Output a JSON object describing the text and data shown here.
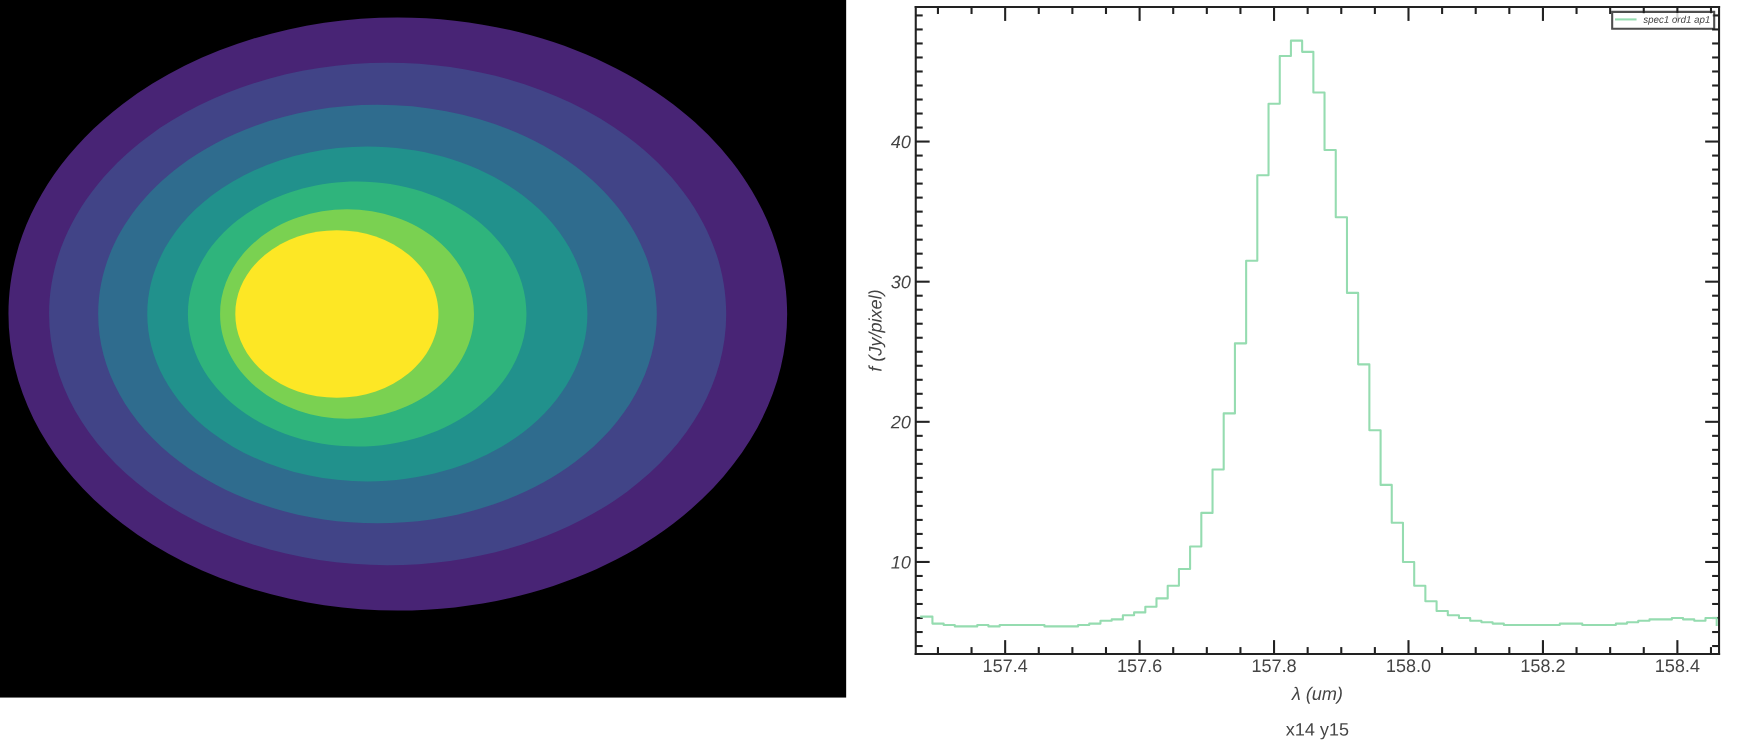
{
  "chart_data": {
    "type": "step",
    "xlabel": "λ (um)",
    "ylabel": "f (Jy/pixel)",
    "annotations": [
      "x14 y15"
    ],
    "xlim": [
      157.267,
      158.462
    ],
    "ylim": [
      3.43,
      49.6
    ],
    "xticks": [
      {
        "value": 157.4,
        "label": "157.4"
      },
      {
        "value": 157.6,
        "label": "157.6"
      },
      {
        "value": 157.8,
        "label": "157.8"
      },
      {
        "value": 158.0,
        "label": "158.0"
      },
      {
        "value": 158.2,
        "label": "158.2"
      },
      {
        "value": 158.4,
        "label": "158.4"
      }
    ],
    "yticks": [
      10,
      20,
      30,
      40
    ],
    "legend": "top right",
    "grid": false,
    "series": [
      {
        "name": "spec1 ord1 ap1",
        "color": "#95dcb0",
        "x": [
          157.2751,
          157.2918,
          157.3085,
          157.3251,
          157.3418,
          157.3585,
          157.3751,
          157.3918,
          157.4085,
          157.4251,
          157.4418,
          157.4585,
          157.4751,
          157.4918,
          157.5085,
          157.5251,
          157.5418,
          157.5585,
          157.5751,
          157.5918,
          157.6085,
          157.6251,
          157.6418,
          157.6585,
          157.6751,
          157.6918,
          157.7085,
          157.7251,
          157.7418,
          157.7585,
          157.7751,
          157.7918,
          157.8085,
          157.8251,
          157.8418,
          157.8585,
          157.8751,
          157.8918,
          157.9085,
          157.9251,
          157.9418,
          157.9585,
          157.9751,
          157.9918,
          158.0085,
          158.0251,
          158.0418,
          158.0585,
          158.0751,
          158.0918,
          158.1085,
          158.1251,
          158.1418,
          158.1585,
          158.1751,
          158.1918,
          158.2085,
          158.2251,
          158.2418,
          158.2585,
          158.2751,
          158.2918,
          158.3085,
          158.3251,
          158.3418,
          158.3585,
          158.3751,
          158.3918,
          158.4085,
          158.4251,
          158.4418,
          158.4585
        ],
        "values": [
          6.1,
          5.6,
          5.5,
          5.4,
          5.4,
          5.5,
          5.4,
          5.5,
          5.5,
          5.5,
          5.5,
          5.4,
          5.4,
          5.4,
          5.5,
          5.6,
          5.8,
          5.9,
          6.2,
          6.4,
          6.8,
          7.4,
          8.3,
          9.5,
          11.1,
          13.5,
          16.6,
          20.6,
          25.6,
          31.5,
          37.6,
          42.7,
          46.1,
          47.2,
          46.4,
          43.5,
          39.4,
          34.6,
          29.2,
          24.1,
          19.4,
          15.5,
          12.8,
          10.0,
          8.3,
          7.2,
          6.5,
          6.2,
          6.0,
          5.8,
          5.7,
          5.6,
          5.5,
          5.5,
          5.5,
          5.5,
          5.5,
          5.6,
          5.6,
          5.5,
          5.5,
          5.5,
          5.6,
          5.7,
          5.8,
          5.9,
          5.9,
          6.0,
          5.9,
          5.8,
          6.0,
          5.5
        ]
      }
    ]
  }
}
